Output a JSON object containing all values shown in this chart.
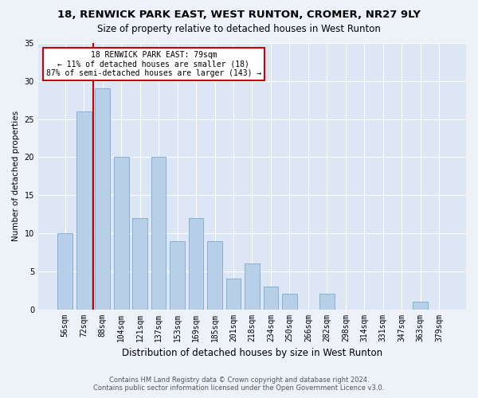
{
  "title1": "18, RENWICK PARK EAST, WEST RUNTON, CROMER, NR27 9LY",
  "title2": "Size of property relative to detached houses in West Runton",
  "xlabel": "Distribution of detached houses by size in West Runton",
  "ylabel": "Number of detached properties",
  "categories": [
    "56sqm",
    "72sqm",
    "88sqm",
    "104sqm",
    "121sqm",
    "137sqm",
    "153sqm",
    "169sqm",
    "185sqm",
    "201sqm",
    "218sqm",
    "234sqm",
    "250sqm",
    "266sqm",
    "282sqm",
    "298sqm",
    "314sqm",
    "331sqm",
    "347sqm",
    "363sqm",
    "379sqm"
  ],
  "values": [
    10,
    26,
    29,
    20,
    12,
    20,
    9,
    12,
    9,
    4,
    6,
    3,
    2,
    0,
    2,
    0,
    0,
    0,
    0,
    1,
    0
  ],
  "bar_color": "#b8cfe8",
  "bar_edgecolor": "#7aaad0",
  "bar_linewidth": 0.6,
  "vline_color": "#cc0000",
  "annotation_text": "18 RENWICK PARK EAST: 79sqm\n← 11% of detached houses are smaller (18)\n87% of semi-detached houses are larger (143) →",
  "annotation_box_color": "#ffffff",
  "annotation_box_edgecolor": "#cc0000",
  "ylim": [
    0,
    35
  ],
  "yticks": [
    0,
    5,
    10,
    15,
    20,
    25,
    30,
    35
  ],
  "footer1": "Contains HM Land Registry data © Crown copyright and database right 2024.",
  "footer2": "Contains public sector information licensed under the Open Government Licence v3.0.",
  "bg_color": "#edf2f9",
  "plot_bg_color": "#dce6f5",
  "grid_color": "#ffffff",
  "title1_fontsize": 9.5,
  "title2_fontsize": 8.5,
  "xlabel_fontsize": 8.5,
  "ylabel_fontsize": 7.5,
  "tick_fontsize": 7,
  "footer_fontsize": 6,
  "ann_fontsize": 7
}
